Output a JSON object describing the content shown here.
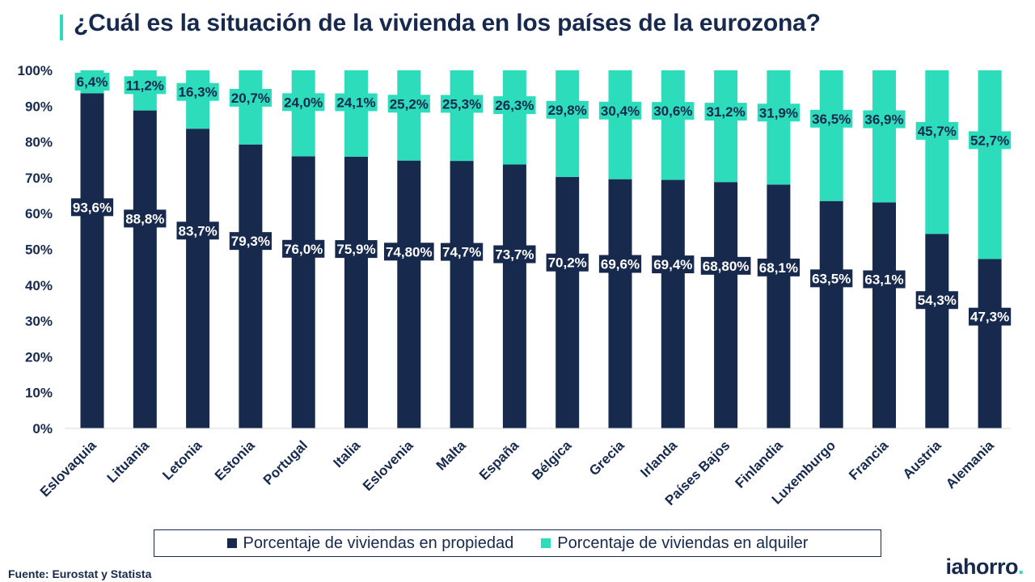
{
  "header": {
    "title": "¿Cuál es la situación de la vivienda en los países de la eurozona?"
  },
  "colors": {
    "own": "#17294d",
    "rent": "#2ddcbb",
    "text": "#17294d"
  },
  "chart_data": {
    "type": "bar",
    "stacked": true,
    "title": "¿Cuál es la situación de la vivienda en los países de la eurozona?",
    "xlabel": "",
    "ylabel": "",
    "ylim": [
      0,
      100
    ],
    "y_ticks": [
      "0%",
      "10%",
      "20%",
      "30%",
      "40%",
      "50%",
      "60%",
      "70%",
      "80%",
      "90%",
      "100%"
    ],
    "categories": [
      "Eslovaquia",
      "Lituania",
      "Letonia",
      "Estonia",
      "Portugal",
      "Italia",
      "Eslovenia",
      "Malta",
      "España",
      "Bélgica",
      "Grecia",
      "Irlanda",
      "Países Bajos",
      "Finlandia",
      "Luxemburgo",
      "Francia",
      "Austria",
      "Alemania"
    ],
    "series": [
      {
        "name": "Porcentaje de viviendas en propiedad",
        "values": [
          93.6,
          88.8,
          83.7,
          79.3,
          76.0,
          75.9,
          74.8,
          74.7,
          73.7,
          70.2,
          69.6,
          69.4,
          68.8,
          68.1,
          63.5,
          63.1,
          54.3,
          47.3
        ],
        "labels": [
          "93,6%",
          "88,8%",
          "83,7%",
          "79,3%",
          "76,0%",
          "75,9%",
          "74,80%",
          "74,7%",
          "73,7%",
          "70,2%",
          "69,6%",
          "69,4%",
          "68,80%",
          "68,1%",
          "63,5%",
          "63,1%",
          "54,3%",
          "47,3%"
        ]
      },
      {
        "name": "Porcentaje de viviendas en alquiler",
        "values": [
          6.4,
          11.2,
          16.3,
          20.7,
          24.0,
          24.1,
          25.2,
          25.3,
          26.3,
          29.8,
          30.4,
          30.6,
          31.2,
          31.9,
          36.5,
          36.9,
          45.7,
          52.7
        ],
        "labels": [
          "6,4%",
          "11,2%",
          "16,3%",
          "20,7%",
          "24,0%",
          "24,1%",
          "25,2%",
          "25,3%",
          "26,3%",
          "29,8%",
          "30,4%",
          "30,6%",
          "31,2%",
          "31,9%",
          "36,5%",
          "36,9%",
          "45,7%",
          "52,7%"
        ]
      }
    ],
    "legend_position": "bottom"
  },
  "footer": {
    "source": "Fuente: Eurostat y Statista",
    "logo_text": "iahorro",
    "logo_dot": "."
  }
}
